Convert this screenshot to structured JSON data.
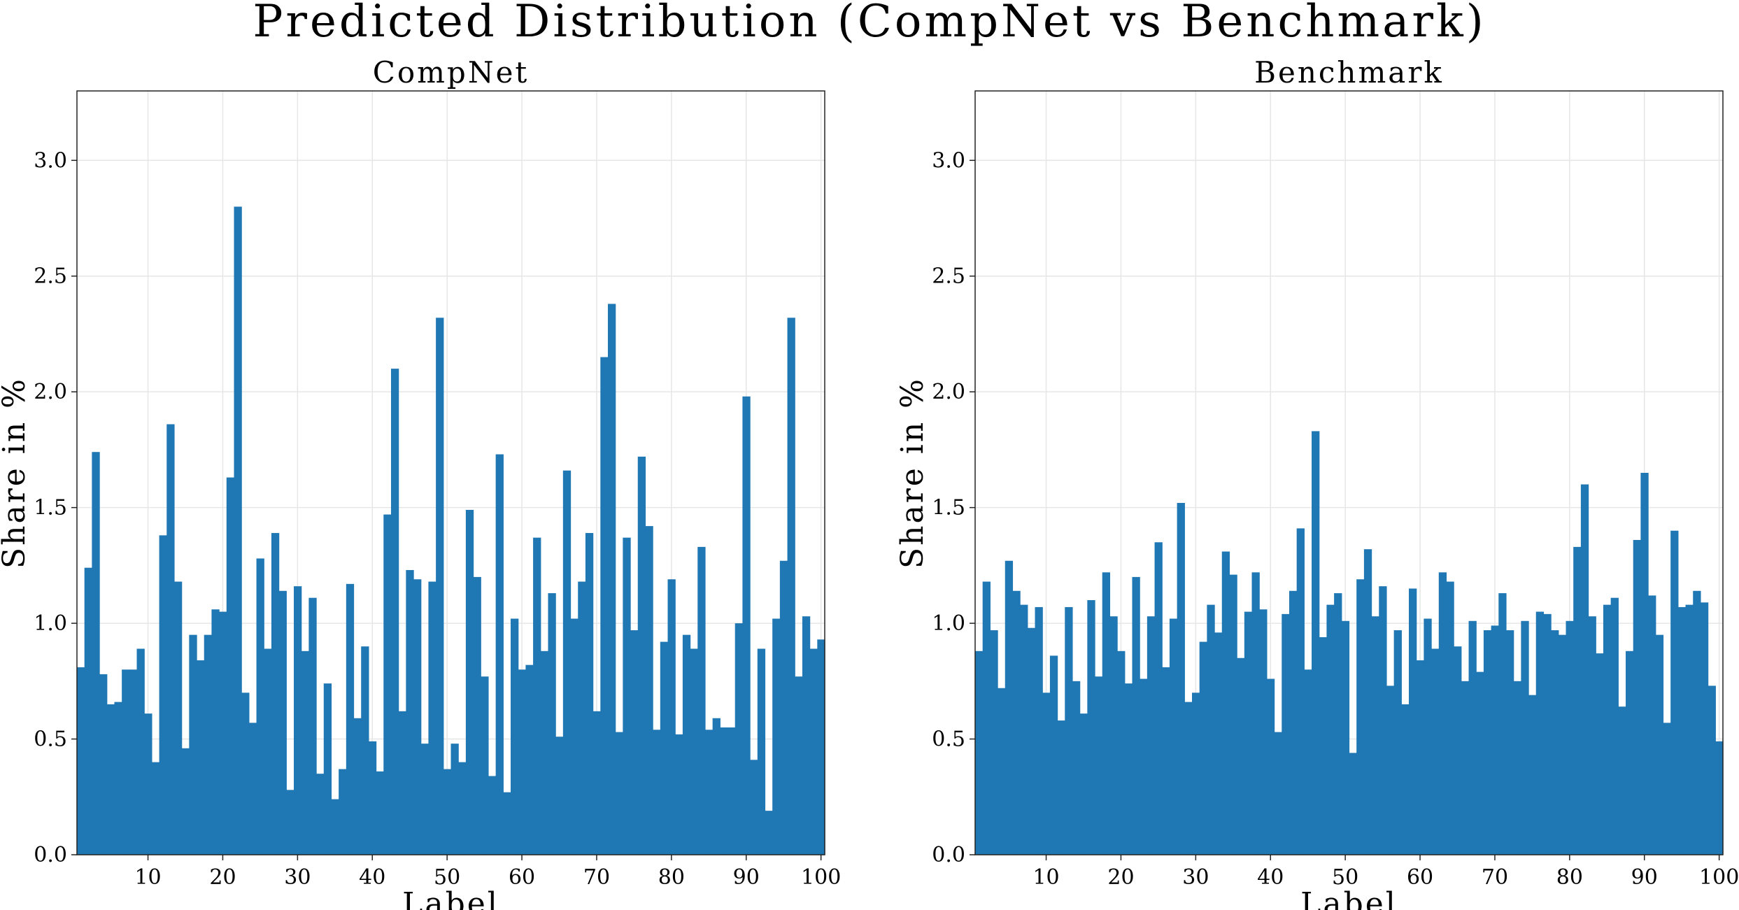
{
  "title": "Predicted Distribution (CompNet vs Benchmark)",
  "chart_data": [
    {
      "type": "bar",
      "title": "CompNet",
      "xlabel": "Label",
      "ylabel": "Share in %",
      "xlim": [
        0.5,
        100.5
      ],
      "ylim": [
        0,
        3.3
      ],
      "xticks": [
        10,
        20,
        30,
        40,
        50,
        60,
        70,
        80,
        90,
        100
      ],
      "yticks": [
        0.0,
        0.5,
        1.0,
        1.5,
        2.0,
        2.5,
        3.0
      ],
      "xtick_labels": [
        "10",
        "20",
        "30",
        "40",
        "50",
        "60",
        "70",
        "80",
        "90",
        "100"
      ],
      "ytick_labels": [
        "0.0",
        "0.5",
        "1.0",
        "1.5",
        "2.0",
        "2.5",
        "3.0"
      ],
      "grid": true,
      "color": "#1f77b4",
      "x": [
        1,
        2,
        3,
        4,
        5,
        6,
        7,
        8,
        9,
        10,
        11,
        12,
        13,
        14,
        15,
        16,
        17,
        18,
        19,
        20,
        21,
        22,
        23,
        24,
        25,
        26,
        27,
        28,
        29,
        30,
        31,
        32,
        33,
        34,
        35,
        36,
        37,
        38,
        39,
        40,
        41,
        42,
        43,
        44,
        45,
        46,
        47,
        48,
        49,
        50,
        51,
        52,
        53,
        54,
        55,
        56,
        57,
        58,
        59,
        60,
        61,
        62,
        63,
        64,
        65,
        66,
        67,
        68,
        69,
        70,
        71,
        72,
        73,
        74,
        75,
        76,
        77,
        78,
        79,
        80,
        81,
        82,
        83,
        84,
        85,
        86,
        87,
        88,
        89,
        90,
        91,
        92,
        93,
        94,
        95,
        96,
        97,
        98,
        99,
        100
      ],
      "values": [
        0.81,
        1.24,
        1.74,
        0.78,
        0.65,
        0.66,
        0.8,
        0.8,
        0.89,
        0.61,
        0.4,
        1.38,
        1.86,
        1.18,
        0.46,
        0.95,
        0.84,
        0.95,
        1.06,
        1.05,
        1.63,
        2.8,
        0.7,
        0.57,
        1.28,
        0.89,
        1.39,
        1.14,
        0.28,
        1.16,
        0.88,
        1.11,
        0.35,
        0.74,
        0.24,
        0.37,
        1.17,
        0.59,
        0.9,
        0.49,
        0.36,
        1.47,
        2.1,
        0.62,
        1.23,
        1.19,
        0.48,
        1.18,
        2.32,
        0.37,
        0.48,
        0.4,
        1.49,
        1.2,
        0.77,
        0.34,
        1.73,
        0.27,
        1.02,
        0.8,
        0.82,
        1.37,
        0.88,
        1.13,
        0.51,
        1.66,
        1.02,
        1.18,
        1.39,
        0.62,
        2.15,
        2.38,
        0.53,
        1.37,
        0.97,
        1.72,
        1.42,
        0.54,
        0.92,
        1.19,
        0.52,
        0.95,
        0.89,
        1.33,
        0.54,
        0.59,
        0.55,
        0.55,
        1.0,
        1.98,
        0.41,
        0.89,
        0.19,
        1.02,
        1.27,
        2.32,
        0.77,
        1.03,
        0.89,
        0.93
      ]
    },
    {
      "type": "bar",
      "title": "Benchmark",
      "xlabel": "Label",
      "ylabel": "Share in %",
      "xlim": [
        0.5,
        100.5
      ],
      "ylim": [
        0,
        3.3
      ],
      "xticks": [
        10,
        20,
        30,
        40,
        50,
        60,
        70,
        80,
        90,
        100
      ],
      "yticks": [
        0.0,
        0.5,
        1.0,
        1.5,
        2.0,
        2.5,
        3.0
      ],
      "xtick_labels": [
        "10",
        "20",
        "30",
        "40",
        "50",
        "60",
        "70",
        "80",
        "90",
        "100"
      ],
      "ytick_labels": [
        "0.0",
        "0.5",
        "1.0",
        "1.5",
        "2.0",
        "2.5",
        "3.0"
      ],
      "grid": true,
      "color": "#1f77b4",
      "x": [
        1,
        2,
        3,
        4,
        5,
        6,
        7,
        8,
        9,
        10,
        11,
        12,
        13,
        14,
        15,
        16,
        17,
        18,
        19,
        20,
        21,
        22,
        23,
        24,
        25,
        26,
        27,
        28,
        29,
        30,
        31,
        32,
        33,
        34,
        35,
        36,
        37,
        38,
        39,
        40,
        41,
        42,
        43,
        44,
        45,
        46,
        47,
        48,
        49,
        50,
        51,
        52,
        53,
        54,
        55,
        56,
        57,
        58,
        59,
        60,
        61,
        62,
        63,
        64,
        65,
        66,
        67,
        68,
        69,
        70,
        71,
        72,
        73,
        74,
        75,
        76,
        77,
        78,
        79,
        80,
        81,
        82,
        83,
        84,
        85,
        86,
        87,
        88,
        89,
        90,
        91,
        92,
        93,
        94,
        95,
        96,
        97,
        98,
        99,
        100
      ],
      "values": [
        0.88,
        1.18,
        0.97,
        0.72,
        1.27,
        1.14,
        1.08,
        0.98,
        1.07,
        0.7,
        0.86,
        0.58,
        1.07,
        0.75,
        0.61,
        1.1,
        0.77,
        1.22,
        1.03,
        0.88,
        0.74,
        1.2,
        0.76,
        1.03,
        1.35,
        0.81,
        1.02,
        1.52,
        0.66,
        0.7,
        0.92,
        1.08,
        0.96,
        1.31,
        1.21,
        0.85,
        1.05,
        1.22,
        1.06,
        0.76,
        0.53,
        1.04,
        1.14,
        1.41,
        0.8,
        1.83,
        0.94,
        1.08,
        1.13,
        1.01,
        0.44,
        1.19,
        1.32,
        1.03,
        1.16,
        0.73,
        0.97,
        0.65,
        1.15,
        0.84,
        1.02,
        0.89,
        1.22,
        1.18,
        0.9,
        0.75,
        1.01,
        0.79,
        0.97,
        0.99,
        1.13,
        0.97,
        0.75,
        1.01,
        0.69,
        1.05,
        1.04,
        0.97,
        0.95,
        1.01,
        1.33,
        1.6,
        1.03,
        0.87,
        1.08,
        1.11,
        0.64,
        0.88,
        1.36,
        1.65,
        1.12,
        0.95,
        0.57,
        1.4,
        1.07,
        1.08,
        1.14,
        1.09,
        0.73,
        0.49
      ]
    }
  ]
}
